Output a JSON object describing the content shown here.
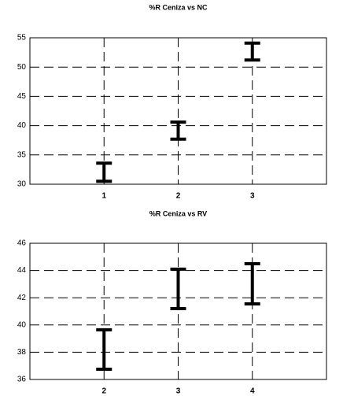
{
  "chart_data": [
    {
      "type": "interval",
      "title": "%R Ceniza vs NC",
      "x": [
        1,
        2,
        3
      ],
      "lower": [
        30.5,
        37.7,
        51.2
      ],
      "upper": [
        33.6,
        40.6,
        54.1
      ],
      "color": "#000000",
      "xlim": [
        0,
        4
      ],
      "xticks": [
        1,
        2,
        3
      ],
      "ylim": [
        30,
        55
      ],
      "yticks": [
        30,
        35,
        40,
        45,
        50,
        55
      ],
      "grid": true
    },
    {
      "type": "interval",
      "title": "%R Ceniza vs RV",
      "x": [
        2,
        3,
        4
      ],
      "lower": [
        36.75,
        41.2,
        41.55
      ],
      "upper": [
        39.65,
        44.1,
        44.5
      ],
      "color": "#000000",
      "xlim": [
        1,
        5
      ],
      "xticks": [
        2,
        3,
        4
      ],
      "ylim": [
        36,
        46
      ],
      "yticks": [
        36,
        38,
        40,
        42,
        44,
        46
      ],
      "grid": true
    }
  ]
}
